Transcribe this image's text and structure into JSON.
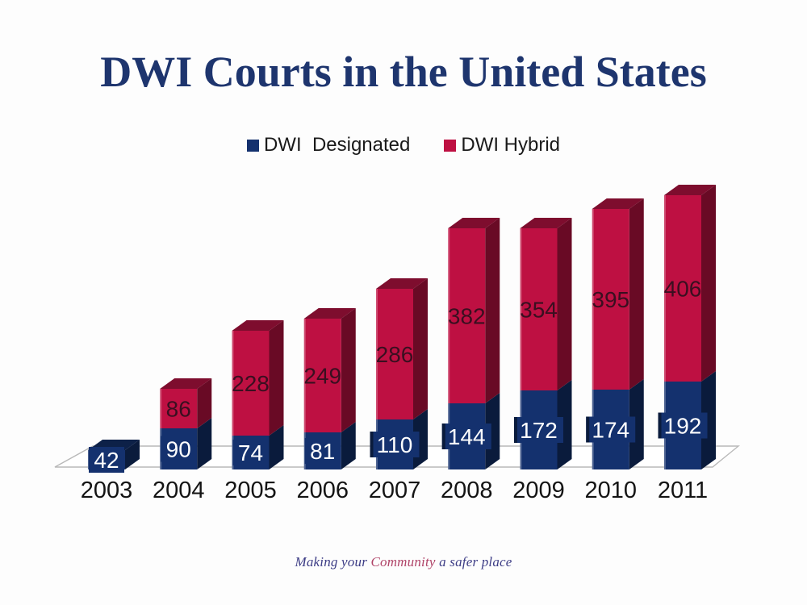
{
  "title": {
    "text": "DWI Courts in the United States",
    "color": "#1E356E"
  },
  "legend": {
    "items": [
      {
        "label": "DWI  Designated"
      },
      {
        "label": "DWI Hybrid"
      }
    ]
  },
  "footer": {
    "segments": [
      {
        "text": "Making your ",
        "color": "#3C3C85"
      },
      {
        "text": "Community",
        "color": "#B04468"
      },
      {
        "text": " a safer place",
        "color": "#3C3C85"
      }
    ]
  },
  "chart_data": {
    "type": "bar",
    "stacked": true,
    "three_d": true,
    "grid": false,
    "legend_position": "top",
    "title": "DWI Courts in the United States",
    "xlabel": "",
    "ylabel": "",
    "categories": [
      "2003",
      "2004",
      "2005",
      "2006",
      "2007",
      "2008",
      "2009",
      "2010",
      "2011"
    ],
    "series": [
      {
        "name": "DWI Designated",
        "color": "#14316E",
        "top_color": "#0D2148",
        "side_color": "#0A1B3C",
        "label_color": "#FFFFFF",
        "values": [
          42,
          90,
          74,
          81,
          110,
          144,
          172,
          174,
          192
        ]
      },
      {
        "name": "DWI Hybrid",
        "color": "#BE1042",
        "top_color": "#7E0D2E",
        "side_color": "#690A25",
        "label_color": "#3A0F20",
        "values": [
          0,
          86,
          228,
          249,
          286,
          382,
          354,
          395,
          406
        ]
      }
    ],
    "value_labels": true,
    "category_label_color": "#141414",
    "floor_color": "#b9b9b9"
  }
}
